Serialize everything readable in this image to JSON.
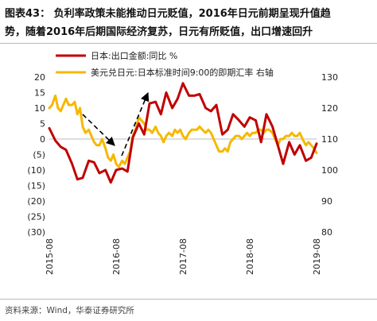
{
  "title_lines": [
    "图表43：  负利率政策未能推动日元贬值，2016年日元前期呈现升值趋",
    "势，随着2016年后期国际经济复苏，日元有所贬值，出口增速回升"
  ],
  "source": "资料来源：Wind，华泰证券研究所",
  "chart_data": {
    "type": "line",
    "x_labels": [
      "2015-08",
      "2016-08",
      "2017-08",
      "2018-08",
      "2019-08"
    ],
    "left_axis": {
      "ticks": [
        "20",
        "15",
        "10",
        "5",
        "0",
        "(5)",
        "(10)",
        "(15)",
        "(20)",
        "(25)",
        "(30)"
      ],
      "ylim": [
        -30,
        20
      ]
    },
    "right_axis": {
      "ticks": [
        "130",
        "120",
        "110",
        "100",
        "90",
        "80"
      ],
      "ylim": [
        80,
        130
      ]
    },
    "series": [
      {
        "name": "日本:出口金额:同比 %",
        "color": "#c00000",
        "axis": "left",
        "x": [
          2015.58,
          2015.67,
          2015.75,
          2015.83,
          2015.92,
          2016.0,
          2016.08,
          2016.17,
          2016.25,
          2016.33,
          2016.42,
          2016.5,
          2016.58,
          2016.67,
          2016.75,
          2016.83,
          2016.92,
          2017.0,
          2017.08,
          2017.17,
          2017.25,
          2017.33,
          2017.42,
          2017.5,
          2017.58,
          2017.67,
          2017.75,
          2017.83,
          2017.92,
          2018.0,
          2018.08,
          2018.17,
          2018.25,
          2018.33,
          2018.42,
          2018.5,
          2018.58,
          2018.67,
          2018.75,
          2018.83,
          2018.92,
          2019.0,
          2019.08,
          2019.17,
          2019.25,
          2019.33,
          2019.42,
          2019.5,
          2019.58
        ],
        "values": [
          3.5,
          -0.5,
          -2.5,
          -3.5,
          -8,
          -13,
          -12.5,
          -7,
          -7.5,
          -11,
          -10,
          -14,
          -10,
          -9.5,
          -10.5,
          0.5,
          5,
          1.5,
          11.5,
          12,
          8,
          15,
          10,
          13,
          18,
          14,
          14,
          14.5,
          10,
          9,
          11,
          1.5,
          3,
          8,
          6,
          4,
          7,
          6,
          -1,
          8,
          4,
          -2,
          -8,
          -1,
          -5,
          -2,
          -7,
          -6,
          -1.5
        ],
        "color_name": "dark-red"
      },
      {
        "name": "美元兑日元:日本标准时间9:00的即期汇率 右轴",
        "color": "#f5b800",
        "axis": "right",
        "x": [
          2015.58,
          2015.62,
          2015.67,
          2015.71,
          2015.75,
          2015.79,
          2015.83,
          2015.87,
          2015.92,
          2015.96,
          2016.0,
          2016.04,
          2016.08,
          2016.12,
          2016.17,
          2016.21,
          2016.25,
          2016.29,
          2016.33,
          2016.37,
          2016.42,
          2016.46,
          2016.5,
          2016.54,
          2016.58,
          2016.62,
          2016.67,
          2016.71,
          2016.75,
          2016.79,
          2016.83,
          2016.87,
          2016.92,
          2016.96,
          2017.0,
          2017.04,
          2017.08,
          2017.12,
          2017.17,
          2017.21,
          2017.25,
          2017.29,
          2017.33,
          2017.37,
          2017.42,
          2017.46,
          2017.5,
          2017.54,
          2017.58,
          2017.62,
          2017.67,
          2017.71,
          2017.75,
          2017.79,
          2017.83,
          2017.87,
          2017.92,
          2017.96,
          2018.0,
          2018.04,
          2018.08,
          2018.12,
          2018.17,
          2018.21,
          2018.25,
          2018.29,
          2018.33,
          2018.37,
          2018.42,
          2018.46,
          2018.5,
          2018.54,
          2018.58,
          2018.62,
          2018.67,
          2018.71,
          2018.75,
          2018.79,
          2018.83,
          2018.87,
          2018.92,
          2018.96,
          2019.0,
          2019.04,
          2019.08,
          2019.12,
          2019.17,
          2019.21,
          2019.25,
          2019.29,
          2019.33,
          2019.37,
          2019.42,
          2019.46,
          2019.5,
          2019.54,
          2019.58
        ],
        "values": [
          120,
          121,
          124,
          120,
          119,
          121,
          123,
          121,
          121,
          122,
          118,
          120,
          114,
          112,
          113,
          111,
          109,
          108,
          108,
          110,
          107,
          104,
          103,
          105,
          102,
          101,
          103,
          102,
          104,
          106,
          111,
          113,
          117,
          116,
          115,
          113,
          113,
          112,
          114,
          112,
          111,
          109,
          111,
          112,
          111,
          113,
          112,
          113,
          111,
          110,
          112,
          113,
          113,
          113,
          114,
          113,
          112,
          113,
          112,
          110,
          108,
          106,
          106,
          107,
          106,
          109,
          110,
          111,
          111,
          110,
          111,
          112,
          111,
          112,
          112,
          113,
          113,
          112,
          113,
          113,
          112,
          110,
          108,
          110,
          110,
          111,
          111,
          112,
          111,
          111,
          112,
          110,
          108,
          109,
          108,
          107,
          105.5
        ],
        "color_name": "amber"
      }
    ],
    "annotations": {
      "arrow_color": "#000000",
      "arrow_style": "dashed"
    }
  }
}
